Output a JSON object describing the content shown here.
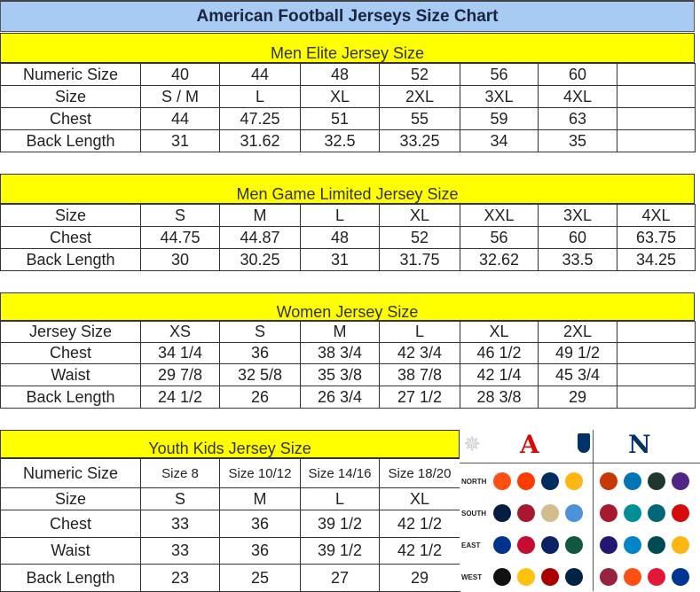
{
  "title": "American Football Jerseys Size Chart",
  "colors": {
    "title_bg": "#a7cbf2",
    "band_bg": "#ffff00",
    "title_text": "#1a2340"
  },
  "sections": [
    {
      "heading": "Men Elite Jersey Size",
      "rows": [
        [
          "Numeric Size",
          "40",
          "44",
          "48",
          "52",
          "56",
          "60",
          ""
        ],
        [
          "Size",
          "S / M",
          "L",
          "XL",
          "2XL",
          "3XL",
          "4XL",
          ""
        ],
        [
          "Chest",
          "44",
          "47.25",
          "51",
          "55",
          "59",
          "63",
          ""
        ],
        [
          "Back Length",
          "31",
          "31.62",
          "32.5",
          "33.25",
          "34",
          "35",
          ""
        ]
      ]
    },
    {
      "heading": "Men Game Limited Jersey Size",
      "rows": [
        [
          "Size",
          "S",
          "M",
          "L",
          "XL",
          "XXL",
          "3XL",
          "4XL"
        ],
        [
          "Chest",
          "44.75",
          "44.87",
          "48",
          "52",
          "56",
          "60",
          "63.75"
        ],
        [
          "Back Length",
          "30",
          "30.25",
          "31",
          "31.75",
          "32.62",
          "33.5",
          "34.25"
        ]
      ]
    },
    {
      "heading": "Women Jersey Size",
      "rows": [
        [
          "Jersey Size",
          "XS",
          "S",
          "M",
          "L",
          "XL",
          "2XL",
          ""
        ],
        [
          "Chest",
          "34 1/4",
          "36",
          "38 3/4",
          "42 3/4",
          "46 1/2",
          "49 1/2",
          ""
        ],
        [
          "Waist",
          "29 7/8",
          "32 5/8",
          "35 3/8",
          "38 7/8",
          "42 1/4",
          "45 3/4",
          ""
        ],
        [
          "Back Length",
          "24 1/2",
          "26",
          "26 3/4",
          "27 1/2",
          "28 3/8",
          "29",
          ""
        ]
      ]
    },
    {
      "heading": "Youth Kids Jersey Size",
      "rows": [
        [
          "Numeric Size",
          "Size 8",
          "Size 10/12",
          "Size 14/16",
          "Size 18/20"
        ],
        [
          "Size",
          "S",
          "M",
          "L",
          "XL"
        ],
        [
          "Chest",
          "33",
          "36",
          "39 1/2",
          "42 1/2"
        ],
        [
          "Waist",
          "33",
          "36",
          "39 1/2",
          "42 1/2"
        ],
        [
          "Back Length",
          "23",
          "25",
          "27",
          "29"
        ]
      ]
    }
  ],
  "logos": {
    "conferences": {
      "afc": "A",
      "nfc": "N",
      "afc_color": "#d50a0a",
      "nfc_color": "#013369"
    },
    "divisions": [
      {
        "label": "NORTH",
        "afc": [
          "#fb4f14",
          "#ff3c00",
          "#002c5f",
          "#ffb612"
        ],
        "nfc": [
          "#c83803",
          "#0076b6",
          "#203731",
          "#4f2683"
        ]
      },
      {
        "label": "SOUTH",
        "afc": [
          "#041e42",
          "#a71930",
          "#d3bc8d",
          "#4b92db"
        ],
        "nfc": [
          "#a71930",
          "#008e97",
          "#006778",
          "#d50a0a"
        ]
      },
      {
        "label": "EAST",
        "afc": [
          "#00338d",
          "#c60c30",
          "#0b2265",
          "#125740"
        ],
        "nfc": [
          "#241773",
          "#0085ca",
          "#004c54",
          "#ffb612"
        ]
      },
      {
        "label": "WEST",
        "afc": [
          "#111111",
          "#ffc20e",
          "#aa0000",
          "#002244"
        ],
        "nfc": [
          "#97233f",
          "#fb4f14",
          "#e31837",
          "#003594"
        ]
      }
    ]
  }
}
